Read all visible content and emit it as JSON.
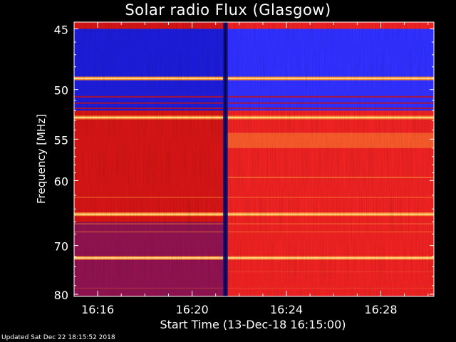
{
  "chart_data": {
    "type": "heatmap",
    "title": "Solar radio Flux (Glasgow)",
    "ylabel": "Frequency [MHz]",
    "xlabel": "Start Time (13-Dec-18 16:15:00)",
    "yticks": [
      45,
      50,
      55,
      60,
      70,
      80
    ],
    "ylim": [
      44.5,
      80.5
    ],
    "y_scale": "reciprocal",
    "xticks": [
      {
        "label": "16:16",
        "minutes": 16
      },
      {
        "label": "16:20",
        "minutes": 20
      },
      {
        "label": "16:24",
        "minutes": 24
      },
      {
        "label": "16:28",
        "minutes": 28
      }
    ],
    "xlim_minutes": [
      15.0,
      30.25
    ],
    "colormap": [
      "#1010c0",
      "#3030ff",
      "#cc1111",
      "#ee2222",
      "#ff8833",
      "#ffdd88"
    ],
    "features": {
      "data_gap_minutes": 21.4,
      "bright_bands_mhz": [
        49,
        52.7,
        64.8,
        72.3
      ],
      "low_band_mhz": [
        45,
        52
      ]
    }
  },
  "footer": {
    "updated": "Updated Sat Dec 22 18:15:52 2018"
  }
}
